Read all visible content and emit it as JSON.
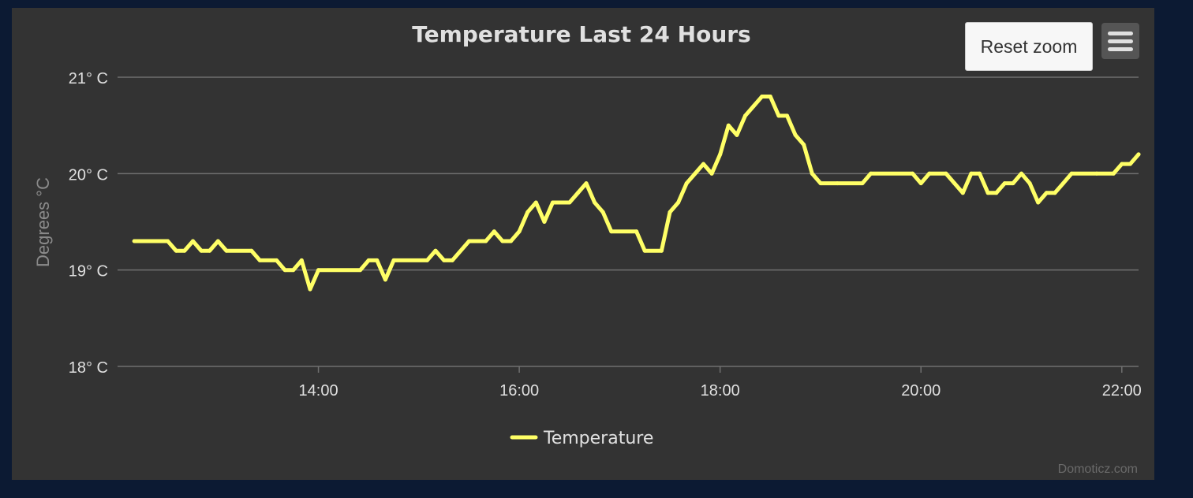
{
  "chart_panel": {
    "reset_zoom_label": "Reset zoom",
    "credits": "Domoticz.com"
  },
  "colors": {
    "page_background": "#0c1a33",
    "panel_background": "#333333",
    "series": "#ffff66",
    "grid": "#707070"
  },
  "icons": {
    "menu": "hamburger-menu-icon"
  },
  "chart_data": {
    "type": "line",
    "title": "Temperature Last 24 Hours",
    "ylabel": "Degrees °C",
    "xlabel": "",
    "ylim": [
      18,
      21
    ],
    "y_ticks": [
      {
        "value": 21,
        "label": "21° C"
      },
      {
        "value": 20,
        "label": "20° C"
      },
      {
        "value": 19,
        "label": "19° C"
      },
      {
        "value": 18,
        "label": "18° C"
      }
    ],
    "xlim": [
      "12:00",
      "22:10"
    ],
    "x_ticks": [
      {
        "value": "14:00",
        "label": "14:00"
      },
      {
        "value": "16:00",
        "label": "16:00"
      },
      {
        "value": "18:00",
        "label": "18:00"
      },
      {
        "value": "20:00",
        "label": "20:00"
      },
      {
        "value": "22:00",
        "label": "22:00"
      }
    ],
    "grid": true,
    "legend": {
      "placement": "bottom-center"
    },
    "series": [
      {
        "name": "Temperature",
        "color": "#ffff66",
        "points": [
          [
            "12:10",
            19.3
          ],
          [
            "12:30",
            19.3
          ],
          [
            "12:35",
            19.2
          ],
          [
            "12:40",
            19.2
          ],
          [
            "12:45",
            19.3
          ],
          [
            "12:50",
            19.2
          ],
          [
            "12:55",
            19.2
          ],
          [
            "13:00",
            19.3
          ],
          [
            "13:05",
            19.2
          ],
          [
            "13:20",
            19.2
          ],
          [
            "13:25",
            19.1
          ],
          [
            "13:35",
            19.1
          ],
          [
            "13:40",
            19.0
          ],
          [
            "13:45",
            19.0
          ],
          [
            "13:50",
            19.1
          ],
          [
            "13:55",
            18.8
          ],
          [
            "14:00",
            19.0
          ],
          [
            "14:25",
            19.0
          ],
          [
            "14:30",
            19.1
          ],
          [
            "14:35",
            19.1
          ],
          [
            "14:40",
            18.9
          ],
          [
            "14:45",
            19.1
          ],
          [
            "15:05",
            19.1
          ],
          [
            "15:10",
            19.2
          ],
          [
            "15:15",
            19.1
          ],
          [
            "15:20",
            19.1
          ],
          [
            "15:30",
            19.3
          ],
          [
            "15:40",
            19.3
          ],
          [
            "15:45",
            19.4
          ],
          [
            "15:50",
            19.3
          ],
          [
            "15:55",
            19.3
          ],
          [
            "16:00",
            19.4
          ],
          [
            "16:05",
            19.6
          ],
          [
            "16:10",
            19.7
          ],
          [
            "16:15",
            19.5
          ],
          [
            "16:20",
            19.7
          ],
          [
            "16:30",
            19.7
          ],
          [
            "16:35",
            19.8
          ],
          [
            "16:40",
            19.9
          ],
          [
            "16:45",
            19.7
          ],
          [
            "16:50",
            19.6
          ],
          [
            "16:55",
            19.4
          ],
          [
            "17:10",
            19.4
          ],
          [
            "17:15",
            19.2
          ],
          [
            "17:25",
            19.2
          ],
          [
            "17:30",
            19.6
          ],
          [
            "17:35",
            19.7
          ],
          [
            "17:40",
            19.9
          ],
          [
            "17:45",
            20.0
          ],
          [
            "17:50",
            20.1
          ],
          [
            "17:55",
            20.0
          ],
          [
            "18:00",
            20.2
          ],
          [
            "18:05",
            20.5
          ],
          [
            "18:10",
            20.4
          ],
          [
            "18:15",
            20.6
          ],
          [
            "18:20",
            20.7
          ],
          [
            "18:25",
            20.8
          ],
          [
            "18:30",
            20.8
          ],
          [
            "18:35",
            20.6
          ],
          [
            "18:40",
            20.6
          ],
          [
            "18:45",
            20.4
          ],
          [
            "18:50",
            20.3
          ],
          [
            "18:55",
            20.0
          ],
          [
            "19:00",
            19.9
          ],
          [
            "19:10",
            19.9
          ],
          [
            "19:25",
            19.9
          ],
          [
            "19:30",
            20.0
          ],
          [
            "19:55",
            20.0
          ],
          [
            "20:00",
            19.9
          ],
          [
            "20:05",
            20.0
          ],
          [
            "20:15",
            20.0
          ],
          [
            "20:20",
            19.9
          ],
          [
            "20:25",
            19.8
          ],
          [
            "20:30",
            20.0
          ],
          [
            "20:35",
            20.0
          ],
          [
            "20:40",
            19.8
          ],
          [
            "20:45",
            19.8
          ],
          [
            "20:50",
            19.9
          ],
          [
            "20:55",
            19.9
          ],
          [
            "21:00",
            20.0
          ],
          [
            "21:05",
            19.9
          ],
          [
            "21:10",
            19.7
          ],
          [
            "21:15",
            19.8
          ],
          [
            "21:20",
            19.8
          ],
          [
            "21:25",
            19.9
          ],
          [
            "21:30",
            20.0
          ],
          [
            "21:45",
            20.0
          ],
          [
            "21:55",
            20.0
          ],
          [
            "22:00",
            20.1
          ],
          [
            "22:05",
            20.1
          ],
          [
            "22:10",
            20.2
          ]
        ]
      }
    ]
  }
}
